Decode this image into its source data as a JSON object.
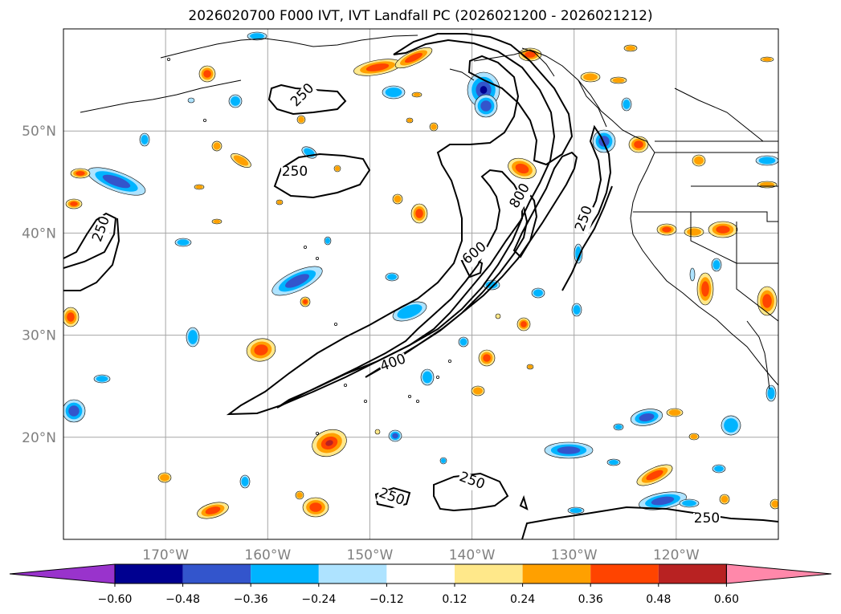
{
  "title": "2026020700 F000 IVT, IVT Landfall PC (2026021200 - 2026021212)",
  "map": {
    "lon_range": [
      -180,
      -110
    ],
    "lat_range": [
      10,
      60
    ],
    "gridlines": true,
    "lon_labels": [
      "170°W",
      "160°W",
      "150°W",
      "140°W",
      "130°W",
      "120°W"
    ],
    "lat_labels": [
      "50°N",
      "40°N",
      "30°N",
      "20°N"
    ],
    "colors": {
      "land_outline": "#000000",
      "grid": "#a6a6a6",
      "label": "#808080"
    }
  },
  "contours": {
    "color": "#000000",
    "labels": [
      "250",
      "250",
      "250",
      "250",
      "250",
      "250",
      "250",
      "400",
      "600",
      "800"
    ]
  },
  "colorbar": {
    "tick_labels": [
      "−0.60",
      "−0.48",
      "−0.36",
      "−0.24",
      "−0.12",
      "0.12",
      "0.24",
      "0.36",
      "0.48",
      "0.60"
    ],
    "levels": [
      -0.6,
      -0.48,
      -0.36,
      -0.24,
      -0.12,
      0.12,
      0.24,
      0.36,
      0.48,
      0.6
    ],
    "under_color": "#9933cc",
    "over_color": "#ff88aa",
    "colors": [
      "#000090",
      "#3355cc",
      "#00b4ff",
      "#aee3ff",
      "#ffffff",
      "#ffe88a",
      "#ffa000",
      "#ff4400",
      "#b82222"
    ],
    "extend": "both"
  },
  "shading": {
    "negative_colors": [
      "#aee3ff",
      "#00b4ff",
      "#3355cc",
      "#000090"
    ],
    "positive_colors": [
      "#ffe88a",
      "#ffa000",
      "#ff4400",
      "#b82222"
    ]
  }
}
